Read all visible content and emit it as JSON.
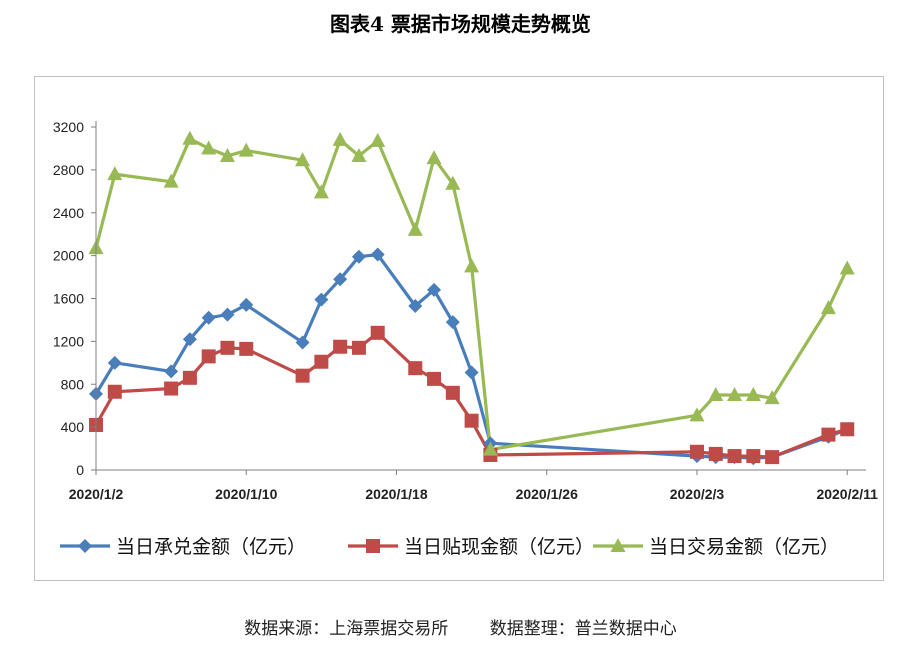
{
  "title": "图表4  票据市场规模走势概览",
  "source": {
    "left": "数据来源：上海票据交易所",
    "right": "数据整理：普兰数据中心"
  },
  "chart_data": {
    "type": "line",
    "ylim": [
      0,
      3200
    ],
    "yticks": [
      0,
      400,
      800,
      1200,
      1600,
      2000,
      2400,
      2800,
      3200
    ],
    "xlim": [
      "2020-01-02",
      "2020-02-12"
    ],
    "xticks": [
      {
        "date": "2020-01-02",
        "label": "2020/1/2"
      },
      {
        "date": "2020-01-10",
        "label": "2020/1/10"
      },
      {
        "date": "2020-01-18",
        "label": "2020/1/18"
      },
      {
        "date": "2020-01-26",
        "label": "2020/1/26"
      },
      {
        "date": "2020-02-03",
        "label": "2020/2/3"
      },
      {
        "date": "2020-02-11",
        "label": "2020/2/11"
      }
    ],
    "x": [
      "2020-01-02",
      "2020-01-03",
      "2020-01-06",
      "2020-01-07",
      "2020-01-08",
      "2020-01-09",
      "2020-01-10",
      "2020-01-13",
      "2020-01-14",
      "2020-01-15",
      "2020-01-16",
      "2020-01-17",
      "2020-01-19",
      "2020-01-20",
      "2020-01-21",
      "2020-01-22",
      "2020-01-23",
      "2020-02-03",
      "2020-02-04",
      "2020-02-05",
      "2020-02-06",
      "2020-02-07",
      "2020-02-10",
      "2020-02-11"
    ],
    "series": [
      {
        "name": "当日承兑金额（亿元）",
        "color": "#4a7ebb",
        "marker": "diamond",
        "values": [
          710,
          1000,
          920,
          1220,
          1420,
          1450,
          1540,
          1190,
          1590,
          1780,
          1990,
          2010,
          1530,
          1680,
          1380,
          910,
          250,
          130,
          120,
          120,
          110,
          120,
          310,
          380
        ]
      },
      {
        "name": "当日贴现金额（亿元）",
        "color": "#be4b48",
        "marker": "square",
        "values": [
          420,
          730,
          760,
          860,
          1060,
          1140,
          1130,
          880,
          1010,
          1150,
          1140,
          1280,
          950,
          850,
          720,
          460,
          140,
          170,
          150,
          130,
          130,
          120,
          330,
          380
        ]
      },
      {
        "name": "当日交易金额（亿元）",
        "color": "#98b954",
        "marker": "triangle",
        "values": [
          2070,
          2760,
          2690,
          3090,
          3000,
          2930,
          2980,
          2890,
          2590,
          3080,
          2930,
          3070,
          2240,
          2910,
          2670,
          1900,
          190,
          510,
          700,
          700,
          700,
          670,
          1510,
          1880
        ]
      }
    ],
    "legend": "bottom"
  }
}
